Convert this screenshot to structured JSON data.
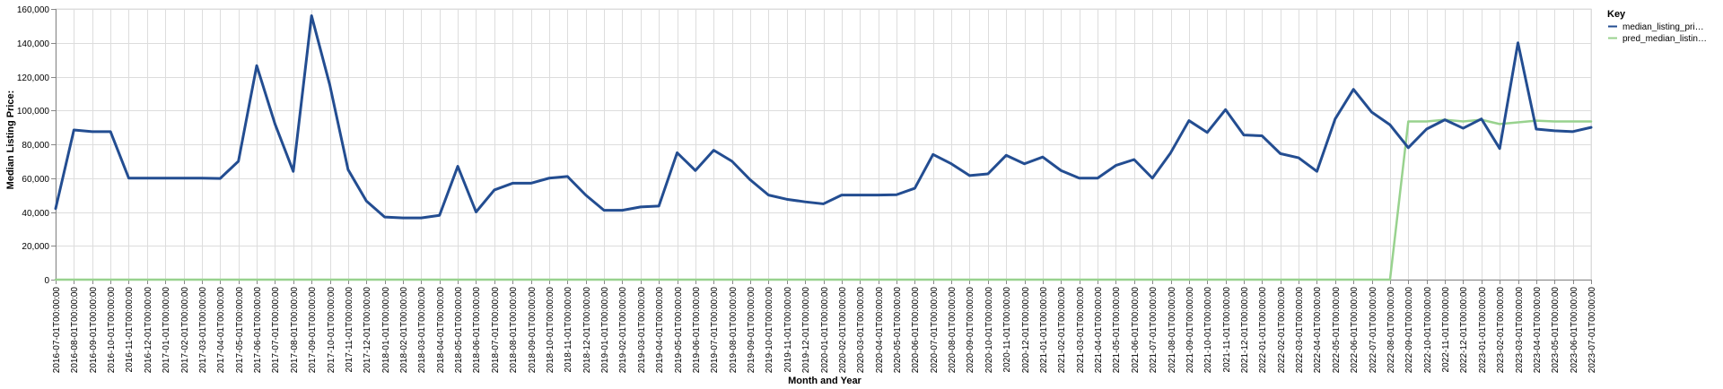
{
  "chart_data": {
    "type": "line",
    "title": "",
    "xlabel": "Month and Year",
    "ylabel": "Median Listing Price:",
    "ylim": [
      0,
      160000
    ],
    "yticks": [
      "0",
      "20,000",
      "40,000",
      "60,000",
      "80,000",
      "100,000",
      "120,000",
      "140,000",
      "160,000"
    ],
    "grid": true,
    "legend": {
      "title": "Key",
      "placement": "top-right",
      "labels": [
        "median_listing_pri…",
        "pred_median_listin…"
      ]
    },
    "x": [
      "2016-07-01T00:00:00",
      "2016-08-01T00:00:00",
      "2016-09-01T00:00:00",
      "2016-10-01T00:00:00",
      "2016-11-01T00:00:00",
      "2016-12-01T00:00:00",
      "2017-01-01T00:00:00",
      "2017-02-01T00:00:00",
      "2017-03-01T00:00:00",
      "2017-04-01T00:00:00",
      "2017-05-01T00:00:00",
      "2017-06-01T00:00:00",
      "2017-07-01T00:00:00",
      "2017-08-01T00:00:00",
      "2017-09-01T00:00:00",
      "2017-10-01T00:00:00",
      "2017-11-01T00:00:00",
      "2017-12-01T00:00:00",
      "2018-01-01T00:00:00",
      "2018-02-01T00:00:00",
      "2018-03-01T00:00:00",
      "2018-04-01T00:00:00",
      "2018-05-01T00:00:00",
      "2018-06-01T00:00:00",
      "2018-07-01T00:00:00",
      "2018-08-01T00:00:00",
      "2018-09-01T00:00:00",
      "2018-10-01T00:00:00",
      "2018-11-01T00:00:00",
      "2018-12-01T00:00:00",
      "2019-01-01T00:00:00",
      "2019-02-01T00:00:00",
      "2019-03-01T00:00:00",
      "2019-04-01T00:00:00",
      "2019-05-01T00:00:00",
      "2019-06-01T00:00:00",
      "2019-07-01T00:00:00",
      "2019-08-01T00:00:00",
      "2019-09-01T00:00:00",
      "2019-10-01T00:00:00",
      "2019-11-01T00:00:00",
      "2019-12-01T00:00:00",
      "2020-01-01T00:00:00",
      "2020-02-01T00:00:00",
      "2020-03-01T00:00:00",
      "2020-04-01T00:00:00",
      "2020-05-01T00:00:00",
      "2020-06-01T00:00:00",
      "2020-07-01T00:00:00",
      "2020-08-01T00:00:00",
      "2020-09-01T00:00:00",
      "2020-10-01T00:00:00",
      "2020-11-01T00:00:00",
      "2020-12-01T00:00:00",
      "2021-01-01T00:00:00",
      "2021-02-01T00:00:00",
      "2021-03-01T00:00:00",
      "2021-04-01T00:00:00",
      "2021-05-01T00:00:00",
      "2021-06-01T00:00:00",
      "2021-07-01T00:00:00",
      "2021-08-01T00:00:00",
      "2021-09-01T00:00:00",
      "2021-10-01T00:00:00",
      "2021-11-01T00:00:00",
      "2021-12-01T00:00:00",
      "2022-01-01T00:00:00",
      "2022-02-01T00:00:00",
      "2022-03-01T00:00:00",
      "2022-04-01T00:00:00",
      "2022-05-01T00:00:00",
      "2022-06-01T00:00:00",
      "2022-07-01T00:00:00",
      "2022-08-01T00:00:00",
      "2022-09-01T00:00:00",
      "2022-10-01T00:00:00",
      "2022-11-01T00:00:00",
      "2022-12-01T00:00:00",
      "2023-01-01T00:00:00",
      "2023-02-01T00:00:00",
      "2023-03-01T00:00:00",
      "2023-04-01T00:00:00",
      "2023-05-01T00:00:00",
      "2023-06-01T00:00:00",
      "2023-07-01T00:00:00"
    ],
    "series": [
      {
        "color": "#234d91",
        "values": [
          42000,
          88500,
          87500,
          87500,
          60000,
          60000,
          60000,
          60000,
          60000,
          59800,
          70000,
          126500,
          92000,
          64000,
          156000,
          115000,
          65000,
          46500,
          37000,
          36500,
          36500,
          38000,
          67000,
          40000,
          53000,
          57000,
          57000,
          60000,
          61000,
          50000,
          41000,
          41000,
          43000,
          43500,
          75000,
          64500,
          76500,
          70000,
          59000,
          50000,
          47500,
          46000,
          44800,
          50000,
          50000,
          50000,
          50200,
          54000,
          74000,
          68500,
          61500,
          62500,
          73500,
          68500,
          72500,
          64500,
          60000,
          60000,
          67500,
          71000,
          60000,
          75000,
          94000,
          87000,
          100500,
          85500,
          85000,
          74500,
          72000,
          64000,
          95000,
          112500,
          99000,
          91500,
          78000,
          89000,
          94500,
          89500,
          95000,
          77500,
          140000,
          89000,
          88000,
          87500,
          90000
        ]
      },
      {
        "color": "#98d28e",
        "values": [
          0,
          0,
          0,
          0,
          0,
          0,
          0,
          0,
          0,
          0,
          0,
          0,
          0,
          0,
          0,
          0,
          0,
          0,
          0,
          0,
          0,
          0,
          0,
          0,
          0,
          0,
          0,
          0,
          0,
          0,
          0,
          0,
          0,
          0,
          0,
          0,
          0,
          0,
          0,
          0,
          0,
          0,
          0,
          0,
          0,
          0,
          0,
          0,
          0,
          0,
          0,
          0,
          0,
          0,
          0,
          0,
          0,
          0,
          0,
          0,
          0,
          0,
          0,
          0,
          0,
          0,
          0,
          0,
          0,
          0,
          0,
          0,
          0,
          0,
          93500,
          93500,
          94500,
          93500,
          94500,
          92000,
          93000,
          94000,
          93500,
          93500,
          93500
        ]
      }
    ]
  }
}
